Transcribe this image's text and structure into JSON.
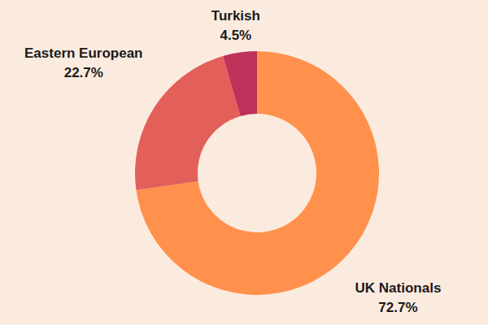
{
  "chart_data": {
    "type": "pie",
    "categories": [
      "UK Nationals",
      "Eastern European",
      "Turkish"
    ],
    "values": [
      72.7,
      22.7,
      4.5
    ],
    "value_labels": [
      "72.7%",
      "22.7%",
      "4.5%"
    ],
    "colors": [
      "#FF914D",
      "#E3605A",
      "#BE315B"
    ],
    "data_labels": true
  }
}
